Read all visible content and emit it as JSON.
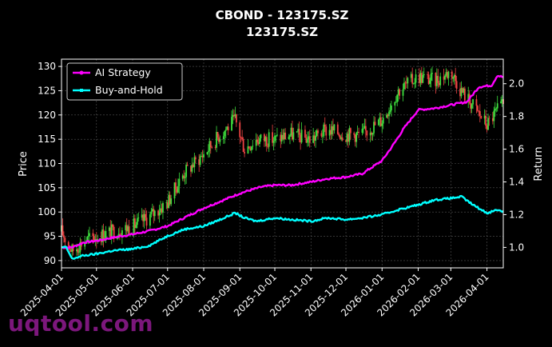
{
  "chart_data": {
    "type": "line",
    "title": "CBOND - 123175.SZ",
    "subtitle": "123175.SZ",
    "xlabel": "",
    "ylabel": "Price",
    "y2label": "Return",
    "x_start": "2025-04-01",
    "x_end": "2026-04-15",
    "xticks": [
      "2025-04-01",
      "2025-05-01",
      "2025-06-01",
      "2025-07-01",
      "2025-08-01",
      "2025-09-01",
      "2025-10-01",
      "2025-11-01",
      "2025-12-01",
      "2026-01-01",
      "2026-02-01",
      "2026-03-01",
      "2026-04-01"
    ],
    "ylim": [
      88.5,
      131.5
    ],
    "yticks": [
      90,
      95,
      100,
      105,
      110,
      115,
      120,
      125,
      130
    ],
    "y2lim": [
      0.875,
      2.15
    ],
    "y2ticks": [
      1.0,
      1.2,
      1.4,
      1.6,
      1.8,
      2.0
    ],
    "grid": true,
    "legend": "top-left",
    "colors": {
      "up": "#3ee03e",
      "down": "#ef4444",
      "ai": "#ff00ff",
      "bh": "#00ffff",
      "bg": "#000000",
      "grid": "#555555"
    },
    "series": [
      {
        "name": "AI Strategy",
        "axis": "right",
        "points": [
          [
            "2025-04-01",
            1.0
          ],
          [
            "2025-04-10",
            1.0
          ],
          [
            "2025-04-20",
            1.03
          ],
          [
            "2025-05-01",
            1.04
          ],
          [
            "2025-05-15",
            1.06
          ],
          [
            "2025-06-01",
            1.08
          ],
          [
            "2025-06-15",
            1.1
          ],
          [
            "2025-07-01",
            1.13
          ],
          [
            "2025-07-15",
            1.18
          ],
          [
            "2025-08-01",
            1.24
          ],
          [
            "2025-08-15",
            1.28
          ],
          [
            "2025-09-01",
            1.33
          ],
          [
            "2025-09-10",
            1.35
          ],
          [
            "2025-09-20",
            1.37
          ],
          [
            "2025-10-01",
            1.38
          ],
          [
            "2025-10-15",
            1.38
          ],
          [
            "2025-11-01",
            1.4
          ],
          [
            "2025-11-15",
            1.42
          ],
          [
            "2025-12-01",
            1.43
          ],
          [
            "2025-12-15",
            1.45
          ],
          [
            "2026-01-01",
            1.53
          ],
          [
            "2026-01-10",
            1.62
          ],
          [
            "2026-01-20",
            1.73
          ],
          [
            "2026-02-01",
            1.84
          ],
          [
            "2026-02-15",
            1.85
          ],
          [
            "2026-03-01",
            1.87
          ],
          [
            "2026-03-15",
            1.89
          ],
          [
            "2026-03-25",
            1.98
          ],
          [
            "2026-04-05",
            1.99
          ],
          [
            "2026-04-10",
            2.05
          ],
          [
            "2026-04-15",
            2.04
          ]
        ]
      },
      {
        "name": "Buy-and-Hold",
        "axis": "right",
        "points": [
          [
            "2025-04-01",
            1.0
          ],
          [
            "2025-04-05",
            1.0
          ],
          [
            "2025-04-10",
            0.93
          ],
          [
            "2025-04-20",
            0.95
          ],
          [
            "2025-05-01",
            0.96
          ],
          [
            "2025-05-15",
            0.98
          ],
          [
            "2025-06-01",
            0.99
          ],
          [
            "2025-06-15",
            1.01
          ],
          [
            "2025-07-01",
            1.07
          ],
          [
            "2025-07-15",
            1.11
          ],
          [
            "2025-08-01",
            1.13
          ],
          [
            "2025-08-15",
            1.17
          ],
          [
            "2025-08-28",
            1.21
          ],
          [
            "2025-09-05",
            1.18
          ],
          [
            "2025-09-15",
            1.16
          ],
          [
            "2025-10-01",
            1.18
          ],
          [
            "2025-10-15",
            1.17
          ],
          [
            "2025-11-01",
            1.16
          ],
          [
            "2025-11-15",
            1.18
          ],
          [
            "2025-12-01",
            1.17
          ],
          [
            "2025-12-15",
            1.18
          ],
          [
            "2026-01-01",
            1.2
          ],
          [
            "2026-01-15",
            1.23
          ],
          [
            "2026-02-01",
            1.26
          ],
          [
            "2026-02-15",
            1.29
          ],
          [
            "2026-03-01",
            1.3
          ],
          [
            "2026-03-10",
            1.31
          ],
          [
            "2026-03-20",
            1.26
          ],
          [
            "2026-04-01",
            1.21
          ],
          [
            "2026-04-10",
            1.23
          ],
          [
            "2026-04-15",
            1.22
          ]
        ]
      },
      {
        "name": "Price",
        "axis": "left",
        "type": "candlestick",
        "points": [
          [
            "2025-04-01",
            96
          ],
          [
            "2025-04-10",
            92
          ],
          [
            "2025-04-20",
            94
          ],
          [
            "2025-05-01",
            95
          ],
          [
            "2025-05-15",
            96
          ],
          [
            "2025-06-01",
            97
          ],
          [
            "2025-06-15",
            99
          ],
          [
            "2025-07-01",
            102
          ],
          [
            "2025-07-15",
            108
          ],
          [
            "2025-08-01",
            112
          ],
          [
            "2025-08-15",
            116
          ],
          [
            "2025-08-28",
            119
          ],
          [
            "2025-09-05",
            113
          ],
          [
            "2025-09-15",
            115
          ],
          [
            "2025-10-01",
            115
          ],
          [
            "2025-10-15",
            116
          ],
          [
            "2025-11-01",
            115
          ],
          [
            "2025-11-15",
            117
          ],
          [
            "2025-12-01",
            116
          ],
          [
            "2025-12-15",
            116
          ],
          [
            "2026-01-01",
            119
          ],
          [
            "2026-01-15",
            125
          ],
          [
            "2026-02-01",
            128
          ],
          [
            "2026-02-15",
            127
          ],
          [
            "2026-03-01",
            129
          ],
          [
            "2026-03-10",
            125
          ],
          [
            "2026-03-20",
            122
          ],
          [
            "2026-04-01",
            118
          ],
          [
            "2026-04-10",
            121
          ],
          [
            "2026-04-15",
            122
          ]
        ]
      }
    ]
  },
  "watermark": "uqtool.com"
}
